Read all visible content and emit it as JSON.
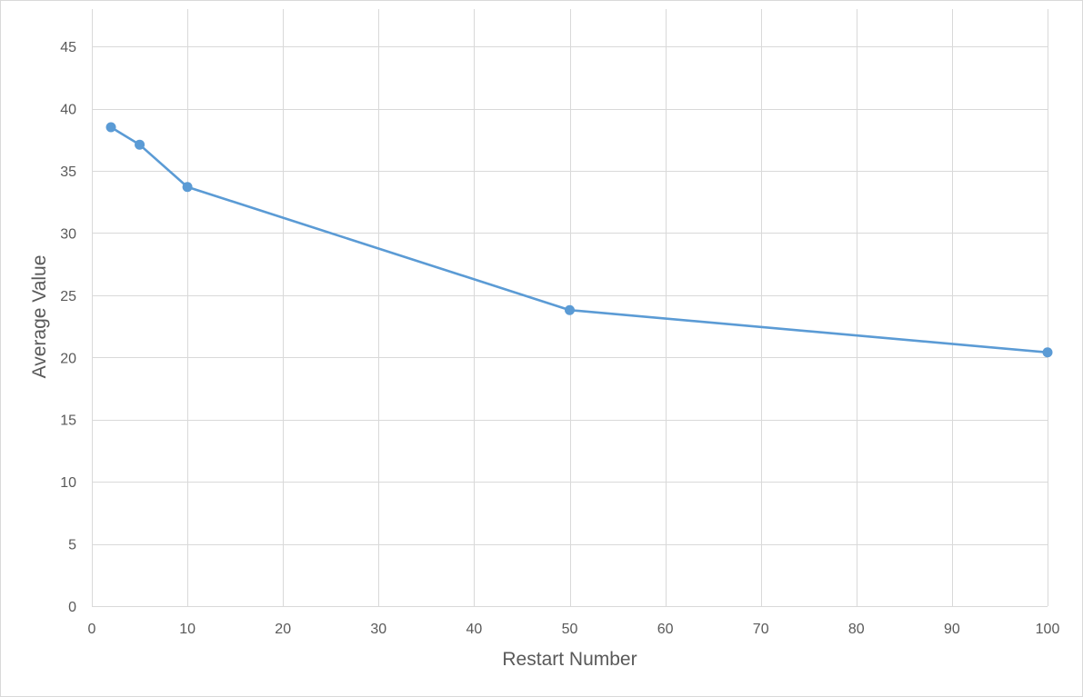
{
  "chart_data": {
    "type": "scatter",
    "title": "",
    "xlabel": "Restart Number",
    "ylabel": "Average Value",
    "xlim": [
      0,
      100
    ],
    "ylim": [
      0,
      48
    ],
    "x_ticks": [
      0,
      10,
      20,
      30,
      40,
      50,
      60,
      70,
      80,
      90,
      100
    ],
    "y_ticks": [
      0,
      5,
      10,
      15,
      20,
      25,
      30,
      35,
      40,
      45
    ],
    "grid": true,
    "legend": "none",
    "series": [
      {
        "color": "#5b9bd5",
        "marker": "circle",
        "line": "straight",
        "points": [
          {
            "x": 2,
            "y": 38.5
          },
          {
            "x": 5,
            "y": 37.1
          },
          {
            "x": 10,
            "y": 33.7
          },
          {
            "x": 50,
            "y": 23.8
          },
          {
            "x": 100,
            "y": 20.4
          }
        ]
      }
    ]
  }
}
